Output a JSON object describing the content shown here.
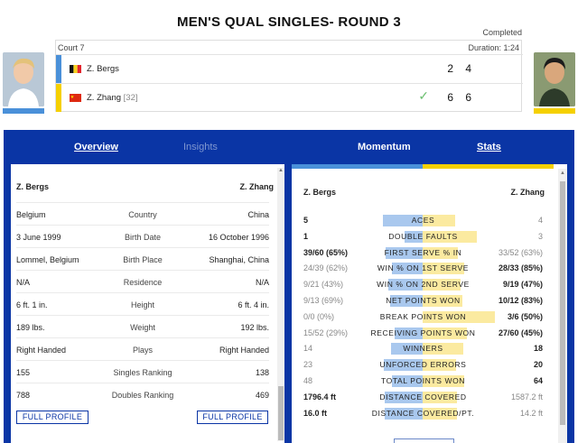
{
  "header": {
    "title": "MEN'S QUAL SINGLES- ROUND 3",
    "status": "Completed"
  },
  "match": {
    "court": "Court 7",
    "duration": "Duration: 1:24",
    "players": [
      {
        "name": "Z. Bergs",
        "seed": "",
        "sets": "2 4",
        "flag": "belgium",
        "color": "#4a90d9",
        "winner": false
      },
      {
        "name": "Z. Zhang",
        "seed": "[32]",
        "sets": "6 6",
        "flag": "china",
        "color": "#f5d000",
        "winner": true
      }
    ],
    "winner_icon": "check-icon"
  },
  "tabs": {
    "overview": "Overview",
    "insights": "Insights",
    "momentum": "Momentum",
    "stats": "Stats"
  },
  "bio": {
    "left_name": "Z. Bergs",
    "right_name": "Z. Zhang",
    "rows": [
      {
        "left": "Belgium",
        "label": "Country",
        "right": "China"
      },
      {
        "left": "3 June 1999",
        "label": "Birth Date",
        "right": "16 October 1996"
      },
      {
        "left": "Lommel, Belgium",
        "label": "Birth Place",
        "right": "Shanghai, China"
      },
      {
        "left": "N/A",
        "label": "Residence",
        "right": "N/A"
      },
      {
        "left": "6 ft. 1 in.",
        "label": "Height",
        "right": "6 ft. 4 in."
      },
      {
        "left": "189 lbs.",
        "label": "Weight",
        "right": "192 lbs."
      },
      {
        "left": "Right Handed",
        "label": "Plays",
        "right": "Right Handed"
      },
      {
        "left": "155",
        "label": "Singles Ranking",
        "right": "138"
      },
      {
        "left": "788",
        "label": "Doubles Ranking",
        "right": "469"
      }
    ],
    "button_label": "FULL PROFILE"
  },
  "stats": {
    "left_name": "Z. Bergs",
    "right_name": "Z. Zhang",
    "rows": [
      {
        "label": "ACES",
        "left": "5",
        "right": "4",
        "lshare": 0.556,
        "rshare": 0.444,
        "winner": "left"
      },
      {
        "label": "DOUBLE FAULTS",
        "left": "1",
        "right": "3",
        "lshare": 0.25,
        "rshare": 0.75,
        "winner": "left"
      },
      {
        "label": "FIRST SERVE % IN",
        "left": "39/60 (65%)",
        "right": "33/52 (63%)",
        "lshare": 0.51,
        "rshare": 0.49,
        "winner": "left"
      },
      {
        "label": "WIN % ON 1ST SERVE",
        "left": "24/39 (62%)",
        "right": "28/33 (85%)",
        "lshare": 0.42,
        "rshare": 0.58,
        "winner": "right"
      },
      {
        "label": "WIN % ON 2ND SERVE",
        "left": "9/21 (43%)",
        "right": "9/19 (47%)",
        "lshare": 0.48,
        "rshare": 0.52,
        "winner": "right"
      },
      {
        "label": "NET POINTS WON",
        "left": "9/13 (69%)",
        "right": "10/12 (83%)",
        "lshare": 0.45,
        "rshare": 0.55,
        "winner": "right"
      },
      {
        "label": "BREAK POINTS WON",
        "left": "0/0 (0%)",
        "right": "3/6 (50%)",
        "lshare": 0.0,
        "rshare": 1.0,
        "winner": "right"
      },
      {
        "label": "RECEIVING POINTS WON",
        "left": "15/52 (29%)",
        "right": "27/60 (45%)",
        "lshare": 0.39,
        "rshare": 0.61,
        "winner": "right"
      },
      {
        "label": "WINNERS",
        "left": "14",
        "right": "18",
        "lshare": 0.4375,
        "rshare": 0.5625,
        "winner": "right"
      },
      {
        "label": "UNFORCED ERRORS",
        "left": "23",
        "right": "20",
        "lshare": 0.535,
        "rshare": 0.465,
        "winner": "right"
      },
      {
        "label": "TOTAL POINTS WON",
        "left": "48",
        "right": "64",
        "lshare": 0.43,
        "rshare": 0.57,
        "winner": "right"
      },
      {
        "label": "DISTANCE COVERED",
        "left": "1796.4 ft",
        "right": "1587.2 ft",
        "lshare": 0.53,
        "rshare": 0.47,
        "winner": "left"
      },
      {
        "label": "DISTANCE COVERED/PT.",
        "left": "16.0 ft",
        "right": "14.2 ft",
        "lshare": 0.53,
        "rshare": 0.47,
        "winner": "left"
      }
    ]
  },
  "colors": {
    "panel": "#0a35a5",
    "player1": "#4a90d9",
    "player2": "#f5d000",
    "bar1": "#a9c8ee",
    "bar2": "#fbeaa0"
  }
}
